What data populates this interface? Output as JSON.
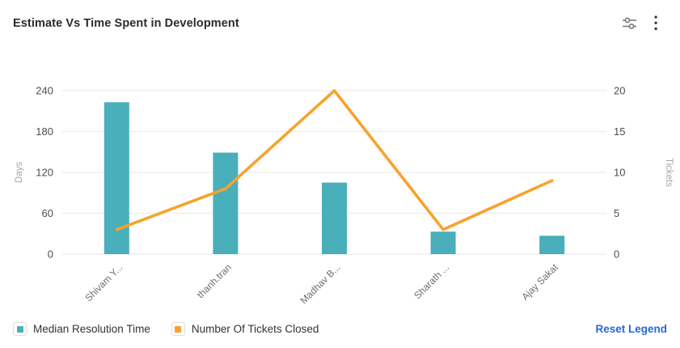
{
  "header": {
    "title": "Estimate Vs Time Spent in Development"
  },
  "chart_data": {
    "type": "bar",
    "subtype": "combo bar+line dual-axis",
    "title": "Estimate Vs Time Spent in Development",
    "categories": [
      "Shivam Y...",
      "thanh.tran",
      "Madhav B...",
      "Sharath ...",
      "Ajay Sakat"
    ],
    "series": [
      {
        "name": "Median Resolution Time",
        "type": "bar",
        "axis": "left",
        "color": "#49AFBA",
        "values": [
          223,
          149,
          105,
          33,
          27
        ]
      },
      {
        "name": "Number Of Tickets Closed",
        "type": "line",
        "axis": "right",
        "color": "#F8A22C",
        "values": [
          3,
          8,
          20,
          3,
          9
        ]
      }
    ],
    "left_axis": {
      "label": "Days",
      "ticks": [
        0,
        60,
        120,
        180,
        240
      ],
      "max": 240
    },
    "right_axis": {
      "label": "Tickets",
      "ticks": [
        0,
        5,
        10,
        15,
        20
      ],
      "max": 20
    },
    "grid": true,
    "legend_position": "bottom-left"
  },
  "legend": {
    "items": [
      {
        "label": "Median Resolution Time",
        "color": "#49AFBA"
      },
      {
        "label": "Number Of Tickets Closed",
        "color": "#F8A22C"
      }
    ],
    "reset_label": "Reset Legend"
  },
  "colors": {
    "bar_teal": "#49AFBA",
    "line_orange": "#F8A22C",
    "link_blue": "#2667D9",
    "gridline": "#ececec",
    "title_text": "#2b2b2b"
  }
}
